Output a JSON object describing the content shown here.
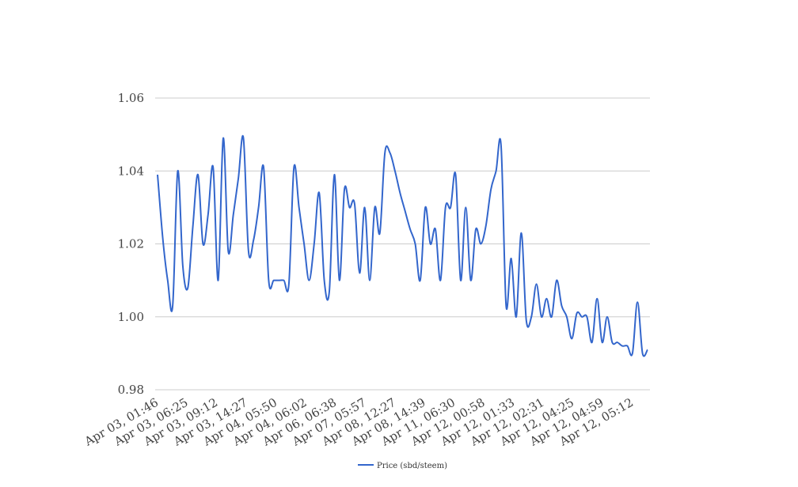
{
  "chart_data": {
    "type": "line",
    "title": "",
    "xlabel": "",
    "ylabel": "",
    "ylim": [
      0.98,
      1.06
    ],
    "yticks": [
      "0.98",
      "1.00",
      "1.02",
      "1.04",
      "1.06"
    ],
    "grid": true,
    "legend_position": "bottom",
    "x_tick_labels": [
      "Apr 03, 01:46",
      "Apr 03, 06:25",
      "Apr 03, 09:12",
      "Apr 03, 14:27",
      "Apr 04, 05:50",
      "Apr 04, 06:02",
      "Apr 06, 06:38",
      "Apr 07, 05:57",
      "Apr 08, 12:27",
      "Apr 08, 14:39",
      "Apr 11, 06:30",
      "Apr 12, 00:58",
      "Apr 12, 01:33",
      "Apr 12, 02:31",
      "Apr 12, 04:25",
      "Apr 12, 04:59",
      "Apr 12, 05:12"
    ],
    "series": [
      {
        "name": "Price (sbd/steem)",
        "color": "#3366cc",
        "values": [
          1.039,
          1.022,
          1.01,
          1.003,
          1.04,
          1.014,
          1.008,
          1.025,
          1.039,
          1.02,
          1.028,
          1.041,
          1.01,
          1.049,
          1.018,
          1.028,
          1.038,
          1.049,
          1.018,
          1.021,
          1.03,
          1.041,
          1.01,
          1.01,
          1.01,
          1.01,
          1.009,
          1.041,
          1.03,
          1.02,
          1.01,
          1.02,
          1.034,
          1.01,
          1.007,
          1.039,
          1.01,
          1.035,
          1.03,
          1.031,
          1.012,
          1.03,
          1.01,
          1.03,
          1.023,
          1.045,
          1.045,
          1.04,
          1.034,
          1.029,
          1.024,
          1.02,
          1.01,
          1.03,
          1.02,
          1.024,
          1.01,
          1.03,
          1.03,
          1.039,
          1.01,
          1.03,
          1.01,
          1.024,
          1.02,
          1.025,
          1.035,
          1.04,
          1.047,
          1.003,
          1.016,
          1.0,
          1.023,
          0.999,
          1.0,
          1.009,
          1.0,
          1.005,
          1.0,
          1.01,
          1.003,
          1.0,
          0.994,
          1.001,
          1.0,
          1.0,
          0.993,
          1.005,
          0.993,
          1.0,
          0.993,
          0.993,
          0.992,
          0.992,
          0.99,
          1.004,
          0.99,
          0.991
        ]
      }
    ]
  }
}
